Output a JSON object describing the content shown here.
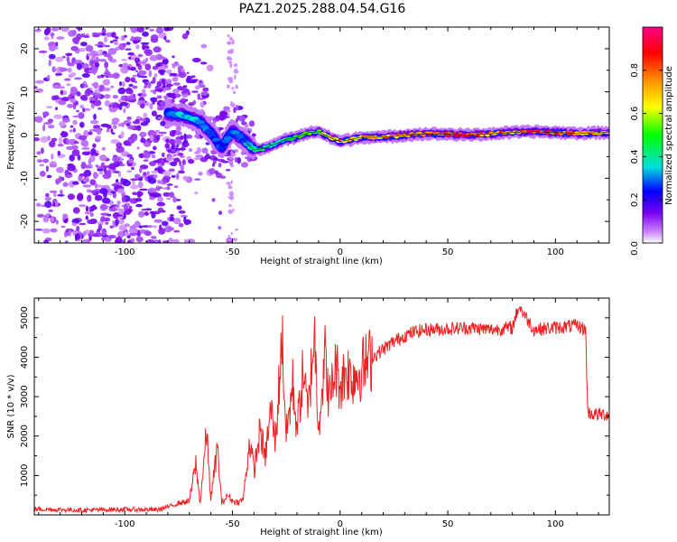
{
  "figure_title": "PAZ1.2025.288.04.54.G16",
  "chart_data": [
    {
      "type": "heatmap",
      "title": "PAZ1.2025.288.04.54.G16",
      "xlabel": "Height of straight line (km)",
      "ylabel": "Frequency (Hz)",
      "xlim": [
        -142,
        125
      ],
      "ylim": [
        -25,
        25
      ],
      "xticks": [
        -100,
        -50,
        0,
        50,
        100
      ],
      "xtick_labels": [
        "-100",
        "-50",
        "0",
        "50",
        "100"
      ],
      "yticks": [
        -20,
        -10,
        0,
        10,
        20
      ],
      "ytick_labels": [
        "-20",
        "-10",
        "0",
        "10",
        "20"
      ],
      "colorbar": {
        "label": "Normalized spectral amplitude",
        "range": [
          0,
          1
        ],
        "ticks": [
          0.0,
          0.2,
          0.4,
          0.6,
          0.8
        ],
        "tick_labels": [
          "0.0",
          "0.2",
          "0.4",
          "0.6",
          "0.8"
        ],
        "colormap": "rainbow (purple-blue-cyan-green-yellow-red-magenta)"
      },
      "ridge": {
        "description": "dominant frequency vs height",
        "x": [
          -80,
          -72,
          -65,
          -60,
          -55,
          -50,
          -45,
          -40,
          -35,
          -30,
          -25,
          -20,
          -15,
          -10,
          -5,
          0,
          5,
          10,
          20,
          30,
          40,
          50,
          60,
          70,
          80,
          90,
          100,
          110,
          125
        ],
        "y": [
          5.0,
          4.5,
          3.0,
          0.5,
          -3.0,
          1.0,
          -1.0,
          -3.5,
          -3.0,
          -2.0,
          -1.0,
          -0.5,
          0.5,
          0.8,
          -0.5,
          -1.5,
          -1.0,
          -0.5,
          -0.5,
          0.0,
          0.3,
          0.2,
          0.0,
          0.3,
          0.6,
          0.8,
          0.6,
          0.4,
          0.6
        ],
        "amplitude": [
          0.3,
          0.35,
          0.35,
          0.25,
          0.3,
          0.3,
          0.3,
          0.45,
          0.45,
          0.4,
          0.45,
          0.5,
          0.5,
          0.55,
          0.65,
          0.8,
          0.7,
          0.75,
          0.75,
          0.8,
          0.8,
          0.95,
          0.85,
          0.8,
          0.8,
          0.9,
          0.85,
          0.75,
          0.7
        ]
      }
    },
    {
      "type": "line",
      "xlabel": "Height of straight line (km)",
      "ylabel": "SNR (10 * v/v)",
      "xlim": [
        -142,
        125
      ],
      "ylim": [
        0,
        5500
      ],
      "xticks": [
        -100,
        -50,
        0,
        50,
        100
      ],
      "xtick_labels": [
        "-100",
        "-50",
        "0",
        "50",
        "100"
      ],
      "yticks": [
        1000,
        2000,
        3000,
        4000,
        5000
      ],
      "ytick_labels": [
        "1000",
        "2000",
        "3000",
        "4000",
        "5000"
      ],
      "series": [
        {
          "name": "SNR",
          "color": "#ee2222",
          "x": [
            -142,
            -120,
            -100,
            -85,
            -80,
            -75,
            -70,
            -67,
            -65,
            -62,
            -60,
            -57,
            -55,
            -52,
            -50,
            -47,
            -45,
            -42,
            -40,
            -37,
            -35,
            -32,
            -30,
            -27,
            -25,
            -22,
            -20,
            -17,
            -15,
            -12,
            -10,
            -7,
            -5,
            -2,
            0,
            3,
            5,
            8,
            10,
            15,
            20,
            25,
            30,
            35,
            40,
            50,
            60,
            70,
            80,
            83,
            90,
            100,
            110,
            114,
            115,
            118,
            125
          ],
          "y": [
            150,
            120,
            140,
            130,
            200,
            300,
            350,
            1300,
            300,
            2100,
            400,
            1700,
            300,
            500,
            350,
            320,
            400,
            1900,
            1100,
            2200,
            1400,
            2700,
            1800,
            4600,
            2000,
            3300,
            2200,
            3700,
            2500,
            4700,
            2300,
            4000,
            2900,
            3800,
            3300,
            3700,
            3500,
            3600,
            3700,
            4000,
            4200,
            4400,
            4550,
            4650,
            4700,
            4720,
            4750,
            4700,
            4750,
            5300,
            4700,
            4750,
            4800,
            4700,
            2600,
            2550,
            2550
          ]
        }
      ]
    }
  ]
}
